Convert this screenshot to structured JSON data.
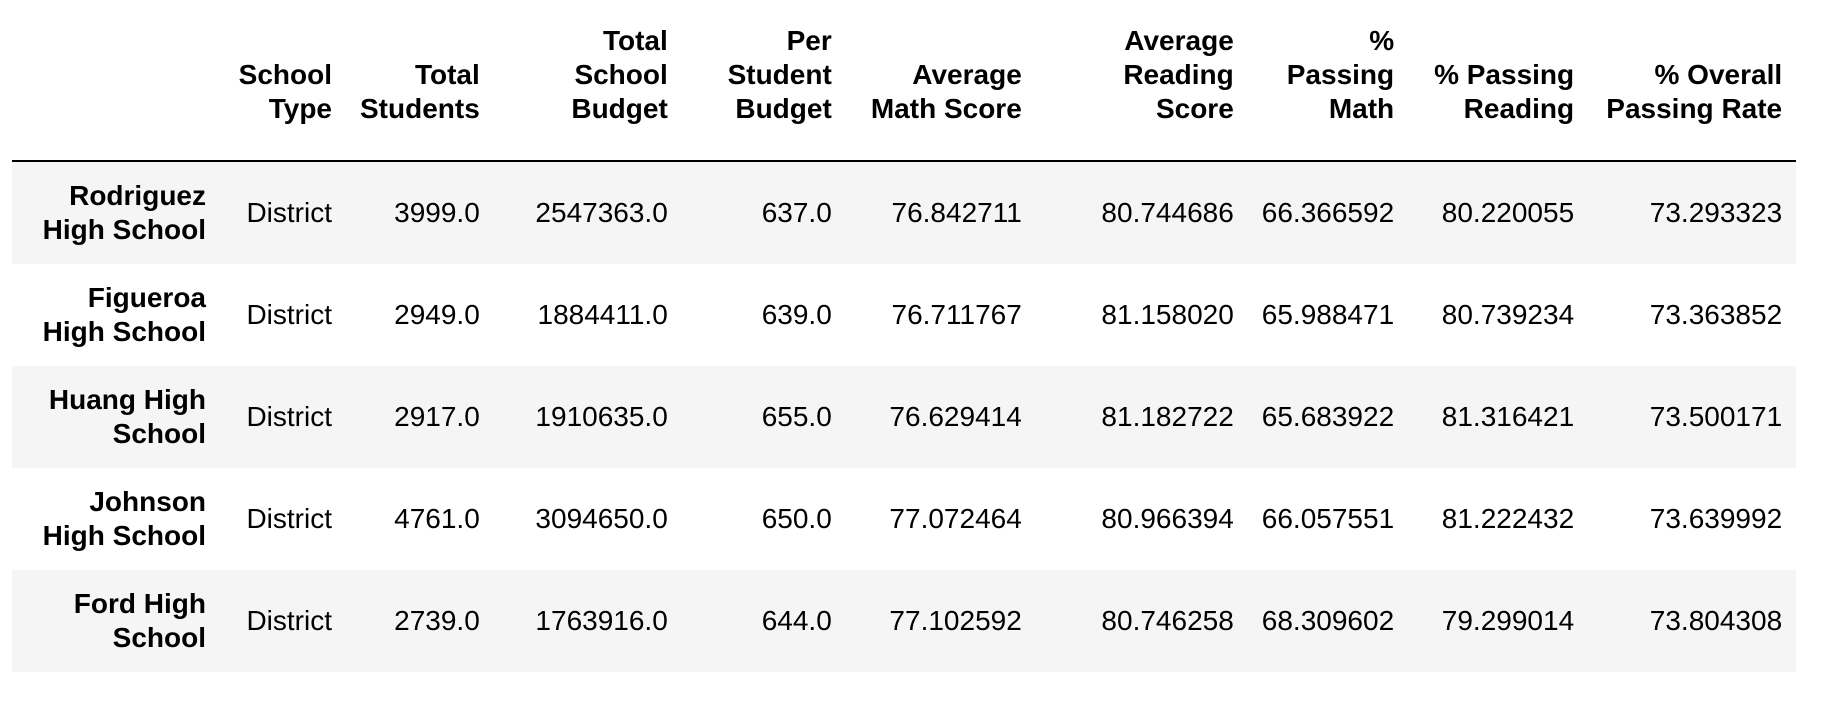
{
  "table": {
    "columns": [
      "",
      "School Type",
      "Total Students",
      "Total School Budget",
      "Per Student Budget",
      "Average Math Score",
      "Average Reading Score",
      "% Passing Math",
      "% Passing Reading",
      "% Overall Passing Rate"
    ],
    "rows": [
      {
        "school": "Rodriguez High School",
        "cells": [
          "District",
          "3999.0",
          "2547363.0",
          "637.0",
          "76.842711",
          "80.744686",
          "66.366592",
          "80.220055",
          "73.293323"
        ]
      },
      {
        "school": "Figueroa High School",
        "cells": [
          "District",
          "2949.0",
          "1884411.0",
          "639.0",
          "76.711767",
          "81.158020",
          "65.988471",
          "80.739234",
          "73.363852"
        ]
      },
      {
        "school": "Huang High School",
        "cells": [
          "District",
          "2917.0",
          "1910635.0",
          "655.0",
          "76.629414",
          "81.182722",
          "65.683922",
          "81.316421",
          "73.500171"
        ]
      },
      {
        "school": "Johnson High School",
        "cells": [
          "District",
          "4761.0",
          "3094650.0",
          "650.0",
          "77.072464",
          "80.966394",
          "66.057551",
          "81.222432",
          "73.639992"
        ]
      },
      {
        "school": "Ford High School",
        "cells": [
          "District",
          "2739.0",
          "1763916.0",
          "644.0",
          "77.102592",
          "80.746258",
          "68.309602",
          "79.299014",
          "73.804308"
        ]
      }
    ]
  }
}
